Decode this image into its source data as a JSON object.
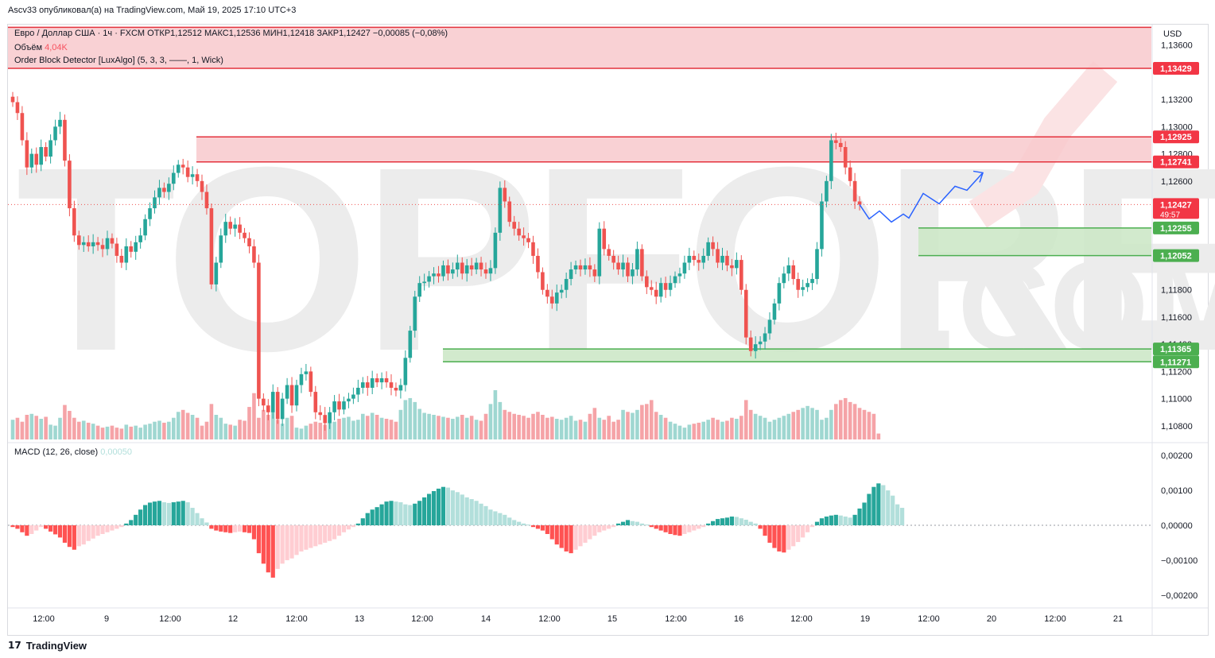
{
  "header": {
    "publisher_line": "Ascv33 опубликовал(а) на TradingView.com, Май 19, 2025 17:10 UTC+3"
  },
  "legend": {
    "symbol_line": "Евро / Доллар США · 1ч · FXCM  ОТКР1,12512  МАКС1,12536  МИН1,12418  ЗАКР1,12427  −0,00085 (−0,08%)",
    "volume_label": "Объём",
    "volume_value": "4,04K",
    "indicator_line": "Order Block Detector [LuxAlgo] (5, 3, 3, ——, 1, Wick)",
    "macd_label": "MACD (12, 26, close)",
    "macd_value": "0,00050"
  },
  "axis": {
    "currency": "USD",
    "price_ticks": [
      "1,13600",
      "1,13200",
      "1,13000",
      "1,12800",
      "1,12600",
      "1,11800",
      "1,11600",
      "1,11400",
      "1,11200",
      "1,11000",
      "1,10800"
    ],
    "macd_ticks": [
      "0,00200",
      "0,00100",
      "0,00000",
      "−0,00100",
      "−0,00200"
    ],
    "time_ticks": [
      "12:00",
      "9",
      "12:00",
      "12",
      "12:00",
      "13",
      "12:00",
      "14",
      "12:00",
      "15",
      "12:00",
      "16",
      "12:00",
      "19",
      "12:00",
      "20",
      "12:00",
      "21"
    ]
  },
  "price_tags": {
    "zone_top_upper": "1,13429",
    "zone_mid_upper": "1,12925",
    "zone_mid_lower": "1,12741",
    "current_price": "1,12427",
    "countdown": "49:57",
    "demand1_upper": "1,12255",
    "demand1_lower": "1,12052",
    "demand2_upper": "1,11365",
    "demand2_lower": "1,11271"
  },
  "watermark": {
    "line1": "TOPFOREX",
    "line2": ".COM"
  },
  "footer": {
    "brand": "TradingView"
  },
  "colors": {
    "bull": "#26a69a",
    "bear": "#ef5350",
    "supply_fill": "#f8c9cc",
    "supply_line": "#e4323c",
    "demand_fill": "#cde8c8",
    "demand_line": "#4caf50",
    "projection": "#2962ff"
  },
  "chart_data": {
    "type": "candlestick",
    "symbol": "Евро / Доллар США",
    "interval": "1ч",
    "ylim": [
      1.107,
      1.1375
    ],
    "closes": [
      1.1318,
      1.131,
      1.129,
      1.127,
      1.128,
      1.1272,
      1.1285,
      1.1278,
      1.129,
      1.13,
      1.1305,
      1.1275,
      1.124,
      1.122,
      1.1213,
      1.1215,
      1.1212,
      1.1215,
      1.1213,
      1.121,
      1.1218,
      1.1214,
      1.1205,
      1.12,
      1.1212,
      1.1208,
      1.1215,
      1.122,
      1.1232,
      1.124,
      1.1248,
      1.1255,
      1.1252,
      1.1258,
      1.1266,
      1.1272,
      1.127,
      1.1263,
      1.1265,
      1.126,
      1.1252,
      1.124,
      1.1184,
      1.12,
      1.122,
      1.123,
      1.1225,
      1.1228,
      1.1222,
      1.1218,
      1.1212,
      1.12,
      1.11,
      1.1095,
      1.109,
      1.1105,
      1.1085,
      1.11,
      1.111,
      1.1095,
      1.111,
      1.1118,
      1.112,
      1.1105,
      1.109,
      1.1088,
      1.1082,
      1.109,
      1.1098,
      1.1092,
      1.1098,
      1.11,
      1.1103,
      1.1108,
      1.1112,
      1.1108,
      1.1115,
      1.1112,
      1.1115,
      1.1112,
      1.1108,
      1.1106,
      1.111,
      1.113,
      1.115,
      1.1175,
      1.1185,
      1.1186,
      1.119,
      1.1192,
      1.119,
      1.1198,
      1.1192,
      1.1195,
      1.12,
      1.1192,
      1.1198,
      1.1195,
      1.12,
      1.1195,
      1.1192,
      1.1196,
      1.1222,
      1.1255,
      1.1245,
      1.123,
      1.1225,
      1.122,
      1.1218,
      1.1215,
      1.1205,
      1.1193,
      1.118,
      1.1175,
      1.117,
      1.1178,
      1.118,
      1.1188,
      1.1195,
      1.1198,
      1.1195,
      1.1198,
      1.1195,
      1.119,
      1.1225,
      1.121,
      1.1205,
      1.12,
      1.1195,
      1.12,
      1.119,
      1.1195,
      1.121,
      1.119,
      1.1182,
      1.118,
      1.1175,
      1.1185,
      1.118,
      1.1185,
      1.119,
      1.1192,
      1.12,
      1.1205,
      1.1202,
      1.12,
      1.1205,
      1.1215,
      1.121,
      1.12,
      1.1205,
      1.1198,
      1.1196,
      1.1202,
      1.118,
      1.1145,
      1.1135,
      1.114,
      1.1142,
      1.1148,
      1.1158,
      1.117,
      1.1185,
      1.1192,
      1.1198,
      1.1188,
      1.118,
      1.1182,
      1.1185,
      1.1188,
      1.121,
      1.1245,
      1.126,
      1.129,
      1.1288,
      1.1285,
      1.127,
      1.126,
      1.1245,
      1.12427
    ],
    "volumes": [
      20,
      22,
      18,
      25,
      26,
      24,
      21,
      23,
      15,
      14,
      22,
      35,
      29,
      22,
      18,
      19,
      17,
      16,
      14,
      12,
      13,
      14,
      12,
      11,
      15,
      13,
      14,
      12,
      15,
      16,
      18,
      19,
      17,
      18,
      22,
      28,
      30,
      27,
      25,
      22,
      14,
      18,
      36,
      25,
      22,
      16,
      15,
      14,
      20,
      19,
      33,
      47,
      22,
      30,
      25,
      28,
      20,
      16,
      22,
      24,
      12,
      11,
      14,
      16,
      18,
      17,
      15,
      20,
      18,
      21,
      22,
      23,
      19,
      20,
      26,
      24,
      27,
      25,
      22,
      21,
      20,
      18,
      30,
      40,
      42,
      38,
      31,
      27,
      26,
      25,
      24,
      23,
      22,
      21,
      23,
      25,
      22,
      24,
      20,
      19,
      26,
      36,
      50,
      38,
      30,
      28,
      26,
      25,
      24,
      22,
      26,
      28,
      25,
      22,
      23,
      21,
      20,
      22,
      24,
      19,
      20,
      18,
      26,
      32,
      22,
      20,
      24,
      18,
      20,
      30,
      28,
      27,
      30,
      35,
      36,
      40,
      28,
      25,
      22,
      18,
      16,
      14,
      12,
      15,
      16,
      17,
      18,
      20,
      22,
      20,
      18,
      19,
      22,
      21,
      24,
      40,
      30,
      26,
      24,
      22,
      18,
      20,
      22,
      24,
      26,
      28,
      30,
      32,
      34,
      32,
      30,
      20,
      22,
      30,
      36,
      40,
      42,
      38,
      36,
      32,
      30,
      28,
      26,
      6
    ],
    "macd": [
      -5e-05,
      -0.0001,
      -0.0002,
      -0.0003,
      -0.00025,
      -0.00015,
      -5e-05,
      -0.0001,
      -0.00018,
      -0.00026,
      -0.00035,
      -0.0005,
      -0.00062,
      -0.0007,
      -0.0006,
      -0.00055,
      -0.00045,
      -0.00038,
      -0.0003,
      -0.00025,
      -0.0002,
      -0.00015,
      -0.0001,
      -5e-05,
      5e-05,
      0.00015,
      0.0003,
      0.00045,
      0.00058,
      0.00065,
      0.00068,
      0.0007,
      0.00066,
      0.00064,
      0.00066,
      0.00068,
      0.0007,
      0.00066,
      0.0005,
      0.00035,
      0.0002,
      8e-05,
      -0.0001,
      -0.00015,
      -0.00018,
      -0.0002,
      -0.00022,
      -0.0002,
      -0.00018,
      -0.0002,
      -0.00022,
      -0.0004,
      -0.0008,
      -0.0011,
      -0.00135,
      -0.0015,
      -0.00125,
      -0.0011,
      -0.001,
      -0.00095,
      -0.00085,
      -0.00075,
      -0.0007,
      -0.00065,
      -0.0006,
      -0.00055,
      -0.0005,
      -0.00045,
      -0.0004,
      -0.0003,
      -0.0002,
      -0.00012,
      -5e-05,
      5e-05,
      0.0002,
      0.00035,
      0.00045,
      0.00052,
      0.0006,
      0.00068,
      0.0007,
      0.00068,
      0.00066,
      0.0006,
      0.00058,
      0.00062,
      0.0007,
      0.0008,
      0.0009,
      0.00098,
      0.00105,
      0.0011,
      0.00108,
      0.001,
      0.00095,
      0.00088,
      0.0008,
      0.00075,
      0.0007,
      0.00062,
      0.00055,
      0.00045,
      0.0004,
      0.00035,
      0.0003,
      0.00022,
      0.00015,
      0.0001,
      5e-05,
      2e-05,
      -5e-05,
      -0.0001,
      -0.00015,
      -0.00025,
      -0.0004,
      -0.00055,
      -0.00065,
      -0.00075,
      -0.0008,
      -0.0007,
      -0.0006,
      -0.0005,
      -0.0004,
      -0.0003,
      -0.0002,
      -0.00015,
      -0.0001,
      -5e-05,
      5e-05,
      0.0001,
      0.00015,
      0.00012,
      0.0001,
      5e-05,
      2e-05,
      -5e-05,
      -0.0001,
      -0.00015,
      -0.0002,
      -0.00025,
      -0.00028,
      -0.0003,
      -0.00025,
      -0.0002,
      -0.00015,
      -0.0001,
      -5e-05,
      5e-05,
      0.00012,
      0.00018,
      0.0002,
      0.00022,
      0.00025,
      0.00024,
      0.0002,
      0.00016,
      0.0001,
      5e-05,
      -0.0001,
      -0.0003,
      -0.0005,
      -0.00065,
      -0.00075,
      -0.00078,
      -0.0007,
      -0.0006,
      -0.00048,
      -0.00035,
      -0.0002,
      -5e-05,
      0.0001,
      0.0002,
      0.00025,
      0.00028,
      0.0003,
      0.00028,
      0.00025,
      0.00022,
      0.0003,
      0.00048,
      0.00065,
      0.0009,
      0.0011,
      0.0012,
      0.00115,
      0.001,
      0.00085,
      0.0006,
      0.0005
    ],
    "macd_ylim": [
      -0.0023,
      0.0023
    ],
    "supply_zones": [
      [
        1.13429,
        1.1373
      ],
      [
        1.12741,
        1.12925
      ]
    ],
    "demand_zones": [
      [
        1.12052,
        1.12255
      ],
      [
        1.11271,
        1.11365
      ]
    ],
    "current_price": 1.12427
  }
}
